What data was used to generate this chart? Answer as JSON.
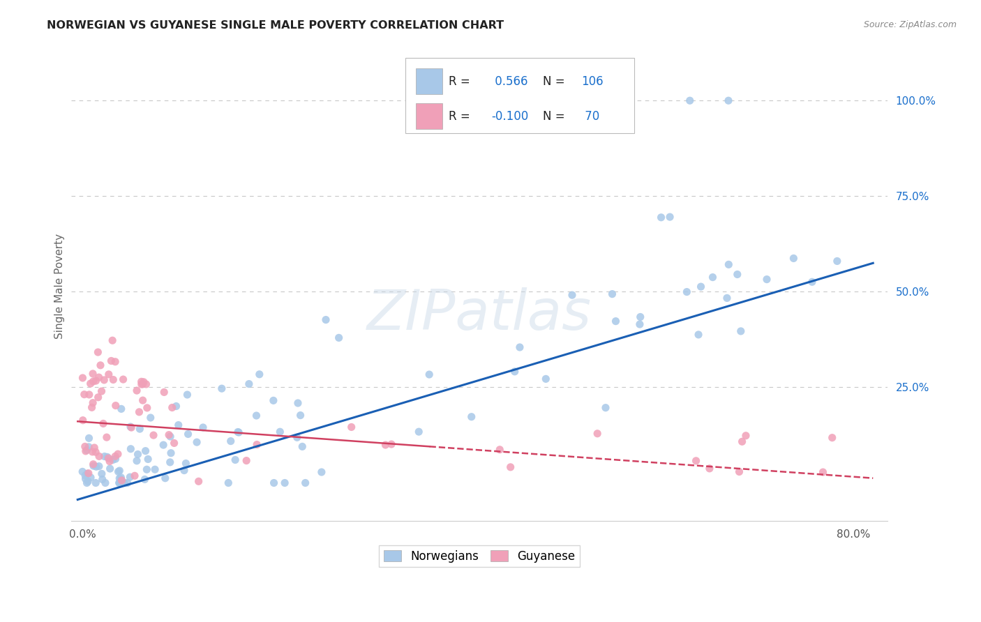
{
  "title": "NORWEGIAN VS GUYANESE SINGLE MALE POVERTY CORRELATION CHART",
  "source": "Source: ZipAtlas.com",
  "ylabel": "Single Male Poverty",
  "watermark": "ZIPatlas",
  "ytick_labels": [
    "100.0%",
    "75.0%",
    "50.0%",
    "25.0%"
  ],
  "ytick_positions": [
    1.0,
    0.75,
    0.5,
    0.25
  ],
  "norwegian_R": 0.566,
  "norwegian_N": 106,
  "guyanese_R": -0.1,
  "guyanese_N": 70,
  "norwegian_color": "#a8c8e8",
  "guyanese_color": "#f0a0b8",
  "norwegian_line_color": "#1a5fb4",
  "guyanese_line_color": "#d04060",
  "legend_label_norwegian": "Norwegians",
  "legend_label_guyanese": "Guyanese",
  "background_color": "#ffffff",
  "grid_color": "#c8c8c8",
  "r_value_color": "#1a6fcc",
  "title_color": "#222222",
  "axis_label_color": "#666666",
  "right_tick_color": "#1a6fcc"
}
